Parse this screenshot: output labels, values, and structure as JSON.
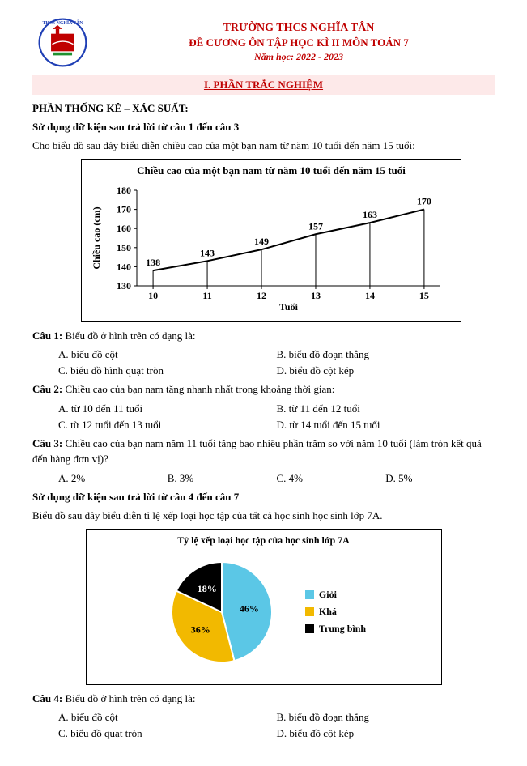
{
  "header": {
    "school": "TRƯỜNG THCS NGHĨA TÂN",
    "doc_title": "ĐỀ CƯƠNG ÔN TẬP HỌC KÌ II MÔN TOÁN 7",
    "year": "Năm học: 2022 - 2023"
  },
  "section_banner": "I. PHẦN TRẮC NGHIỆM",
  "stats_heading": "PHẦN THỐNG KÊ – XÁC SUẤT:",
  "instr1": "Sử dụng dữ kiện sau trả lời từ câu 1 đến câu 3",
  "intro1": "Cho biểu đồ sau đây biểu diễn chiều cao của một bạn nam từ năm 10 tuổi đến năm 15 tuổi:",
  "linechart": {
    "title": "Chiều cao của một bạn nam từ năm 10 tuổi đến năm 15 tuổi",
    "xlabel": "Tuổi",
    "ylabel": "Chiều cao (cm)",
    "x": [
      10,
      11,
      12,
      13,
      14,
      15
    ],
    "y": [
      138,
      143,
      149,
      157,
      163,
      170
    ],
    "ylim": [
      130,
      180
    ],
    "ytick_step": 10,
    "line_color": "#000000",
    "line_width": 2,
    "grid_color": "#000000",
    "label_fontsize": 12,
    "value_fontsize": 12,
    "title_fontsize": 13
  },
  "q1": {
    "prompt": "Biểu đồ ở hình trên có dạng là:",
    "label": "Câu 1:",
    "a": "A. biểu đồ cột",
    "b": "B. biểu đồ đoạn thẳng",
    "c": "C. biểu đồ hình quạt tròn",
    "d": "D. biểu đồ cột kép"
  },
  "q2": {
    "prompt": "Chiều cao của bạn nam tăng nhanh nhất trong khoảng thời gian:",
    "label": "Câu 2:",
    "a": "A. từ 10 đến 11 tuổi",
    "b": "B. từ 11 đến 12 tuổi",
    "c": "C. từ 12 tuổi đến 13 tuổi",
    "d": "D. từ 14 tuổi đến 15 tuổi"
  },
  "q3": {
    "label": "Câu 3:",
    "prompt": "Chiều cao của bạn nam năm 11 tuổi tăng bao nhiêu phần trăm so với năm 10 tuổi (làm tròn kết quả đến hàng đơn vị)?",
    "a": "A. 2%",
    "b": "B. 3%",
    "c": "C. 4%",
    "d": "D. 5%"
  },
  "instr2": "Sử dụng dữ kiện sau trả lời từ câu 4 đến câu 7",
  "intro2": "Biểu đồ sau đây biểu diễn tỉ lệ xếp loại học tập của tất cả học sinh học sinh lớp 7A.",
  "piechart": {
    "title": "Tỷ lệ xếp loại học tập của học sinh lớp 7A",
    "slices": [
      {
        "label": "Giỏi",
        "value": 46,
        "color": "#5bc7e6",
        "text": "46%"
      },
      {
        "label": "Khá",
        "value": 36,
        "color": "#f2b900",
        "text": "36%"
      },
      {
        "label": "Trung bình",
        "value": 18,
        "color": "#000000",
        "text": "18%",
        "text_color": "#ffffff"
      }
    ],
    "title_fontsize": 12,
    "label_fontsize": 12
  },
  "q4": {
    "label": "Câu 4:",
    "prompt": "Biểu đồ ở hình trên có dạng là:",
    "a": "A. biểu đồ cột",
    "b": "B. biểu đồ đoạn thẳng",
    "c": "C. biểu đồ quạt tròn",
    "d": "D. biểu đồ cột kép"
  }
}
